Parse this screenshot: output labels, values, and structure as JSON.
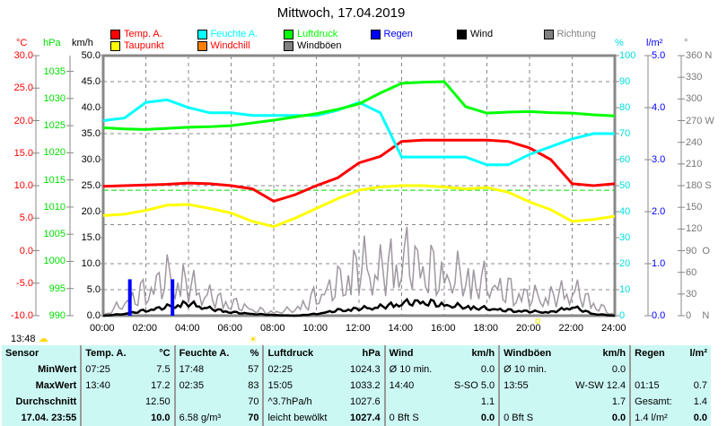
{
  "title": "Mittwoch, 17.04.2019",
  "legend": [
    {
      "label": "Temp. A.",
      "color": "#ff0000"
    },
    {
      "label": "Feuchte A.",
      "color": "#00ffff"
    },
    {
      "label": "Luftdruck",
      "color": "#00ff00"
    },
    {
      "label": "Regen",
      "color": "#0000ff"
    },
    {
      "label": "Wind",
      "color": "#000000"
    },
    {
      "label": "Richtung",
      "color": "#808080"
    },
    {
      "label": "Taupunkt",
      "color": "#ffff00"
    },
    {
      "label": "Windchill",
      "color": "#ff8000"
    },
    {
      "label": "Windböen",
      "color": "#808080"
    }
  ],
  "units": {
    "temp": "°C",
    "press": "hPa",
    "wind": "km/h",
    "hum": "%",
    "rain": "l/m²",
    "dir": "°"
  },
  "chart_data": {
    "type": "line",
    "x_hours": [
      0,
      1,
      2,
      3,
      4,
      5,
      6,
      7,
      8,
      9,
      10,
      11,
      12,
      13,
      14,
      15,
      16,
      17,
      18,
      19,
      20,
      21,
      22,
      23,
      24
    ],
    "xticks": [
      "00:00",
      "02:00",
      "04:00",
      "06:00",
      "08:00",
      "10:00",
      "12:00",
      "14:00",
      "16:00",
      "18:00",
      "20:00",
      "22:00",
      "24:00"
    ],
    "axes": {
      "temp": {
        "range": [
          -10,
          30
        ],
        "ticks": [
          "30.0",
          "25.0",
          "20.0",
          "15.0",
          "10.0",
          "5.0",
          "0.0",
          "-5.0",
          "-10.0"
        ]
      },
      "press": {
        "range": [
          990,
          1037.9
        ],
        "ticks": [
          "1035",
          "1030",
          "1025",
          "1020",
          "1015",
          "1010",
          "1005",
          "1000",
          "995",
          "990"
        ]
      },
      "wind": {
        "range": [
          0,
          50
        ],
        "ticks": [
          "50.0",
          "45.0",
          "40.0",
          "35.0",
          "30.0",
          "25.0",
          "20.0",
          "15.0",
          "10.0",
          "5.0",
          "0.0"
        ]
      },
      "hum": {
        "range": [
          0,
          100
        ],
        "ticks": [
          "100",
          "90",
          "80",
          "70",
          "60",
          "50",
          "40",
          "30",
          "20",
          "10",
          "0"
        ]
      },
      "rain": {
        "range": [
          0,
          5
        ],
        "ticks": [
          "5.0",
          "4.0",
          "3.0",
          "2.0",
          "1.0",
          "0.0"
        ]
      },
      "dir": {
        "range": [
          0,
          360
        ],
        "ticks": [
          "360 N",
          "330",
          "300",
          "270 W",
          "240",
          "210",
          "180 S",
          "150",
          "120",
          "90  O",
          "60",
          "30",
          "0    N"
        ]
      }
    },
    "series": [
      {
        "name": "Temp. A.",
        "axis": "temp",
        "color": "#ff0000",
        "values": [
          9.9,
          10,
          10.1,
          10.2,
          10.4,
          10.3,
          10,
          9.5,
          7.6,
          8.6,
          10,
          11.2,
          13.5,
          14.5,
          16.8,
          17,
          17,
          17,
          17,
          16.8,
          15.8,
          14,
          10.3,
          10,
          10.3
        ]
      },
      {
        "name": "Feuchte A.",
        "axis": "hum",
        "color": "#00ffff",
        "values": [
          75,
          76,
          82,
          83,
          80,
          78,
          78,
          77,
          77,
          77,
          77,
          79,
          82,
          78,
          61,
          61,
          61,
          61,
          58,
          58,
          62,
          65,
          68,
          70,
          70
        ]
      },
      {
        "name": "Luftdruck",
        "axis": "press",
        "color": "#00ff00",
        "values": [
          1024.6,
          1024.4,
          1024.3,
          1024.5,
          1024.7,
          1024.8,
          1025,
          1025.5,
          1026,
          1026.6,
          1027.2,
          1028,
          1029,
          1031,
          1032.8,
          1033,
          1033.1,
          1028.5,
          1027.3,
          1027.5,
          1027.6,
          1027.4,
          1027.3,
          1027,
          1026.8
        ]
      },
      {
        "name": "Taupunkt",
        "axis": "temp",
        "color": "#ffff00",
        "values": [
          5.4,
          5.6,
          6.2,
          7,
          7.1,
          6.5,
          5.8,
          4.5,
          3.7,
          5,
          6.5,
          8,
          9.3,
          9.8,
          10,
          10,
          9.8,
          9.5,
          9.7,
          9,
          7.5,
          6.3,
          4.5,
          4.8,
          5.3
        ]
      },
      {
        "name": "Windböen",
        "axis": "wind",
        "color": "#a098a0",
        "values": [
          0,
          2,
          4,
          6,
          5,
          3,
          2,
          1,
          0.5,
          1,
          3,
          5,
          8,
          7,
          9,
          8,
          6,
          6,
          5,
          4,
          3,
          3,
          4,
          2,
          0
        ]
      },
      {
        "name": "Wind",
        "axis": "wind",
        "color": "#000000",
        "values": [
          0,
          0.5,
          1.5,
          2.5,
          3.5,
          2,
          1,
          0.5,
          0.2,
          0,
          0.5,
          1.5,
          2,
          2.5,
          3.5,
          4,
          3,
          2.5,
          2,
          1.5,
          1.2,
          1,
          2.5,
          0.5,
          0
        ]
      }
    ],
    "rain": [
      {
        "hour": 1.25,
        "value": 0.7
      },
      {
        "hour": 3.25,
        "value": 0.7
      }
    ]
  },
  "status": {
    "time": "13:48"
  },
  "table": {
    "headers": [
      [
        "Sensor",
        ""
      ],
      [
        "Temp. A.",
        "°C"
      ],
      [
        "Feuchte A.",
        "%"
      ],
      [
        "Luftdruck",
        "hPa"
      ],
      [
        "Wind",
        "km/h"
      ],
      [
        "Windböen",
        "km/h"
      ],
      [
        "Regen",
        "l/m²"
      ]
    ],
    "rows": [
      [
        "MinWert",
        "07:25",
        "7.5",
        "17:48",
        "57",
        "02:25",
        "1024.3",
        "Ø 10 min.",
        "0.0",
        "Ø 10 min.",
        "0.0",
        "",
        ""
      ],
      [
        "MaxWert",
        "13:40",
        "17.2",
        "02:35",
        "83",
        "15:05",
        "1033.2",
        "14:40",
        "S-SO 5.0",
        "13:55",
        "W-SW 12.4",
        "01:15",
        "0.7"
      ],
      [
        "Durchschnitt",
        "",
        "12.50",
        "",
        "70",
        "^3.7hPa/h",
        "1027.6",
        "",
        "1.1",
        "",
        "1.7",
        "Gesamt:",
        "1.4"
      ],
      [
        "17.04. 23:55",
        "",
        "10.0",
        "6.58 g/m³",
        "70",
        "leicht bewölkt",
        "1027.4",
        "0 Bft S",
        "0.0",
        "0 Bft S",
        "0.0",
        "1.4 l/m²",
        "0.0"
      ]
    ]
  }
}
